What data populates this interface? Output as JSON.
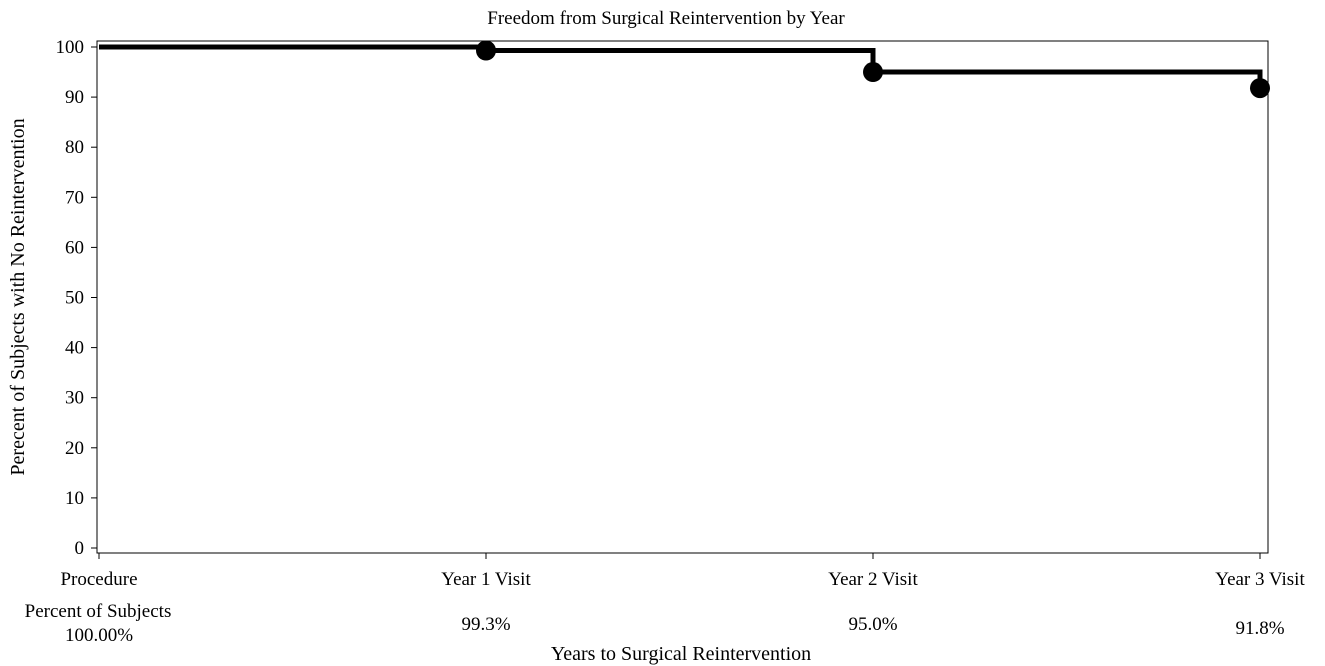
{
  "chart_data": {
    "type": "line",
    "step": true,
    "title": "Freedom from Surgical Reintervention by Year",
    "xlabel": "Years to Surgical Reintervention",
    "ylabel": "Perecent of Subjects with No Reintervention",
    "categories": [
      "Procedure",
      "Year 1 Visit",
      "Year 2 Visit",
      "Year 3 Visit"
    ],
    "values": [
      100,
      99.3,
      95.0,
      91.8
    ],
    "markers_on": [
      "Year 1 Visit",
      "Year 2 Visit",
      "Year 3 Visit"
    ],
    "ylim": [
      0,
      100
    ],
    "yticks": [
      0,
      10,
      20,
      30,
      40,
      50,
      60,
      70,
      80,
      90,
      100
    ],
    "grid": false,
    "line_color": "#000000",
    "table": {
      "header": "Percent of Subjects",
      "values": [
        "100.00%",
        "99.3%",
        "95.0%",
        "91.8%"
      ]
    }
  }
}
